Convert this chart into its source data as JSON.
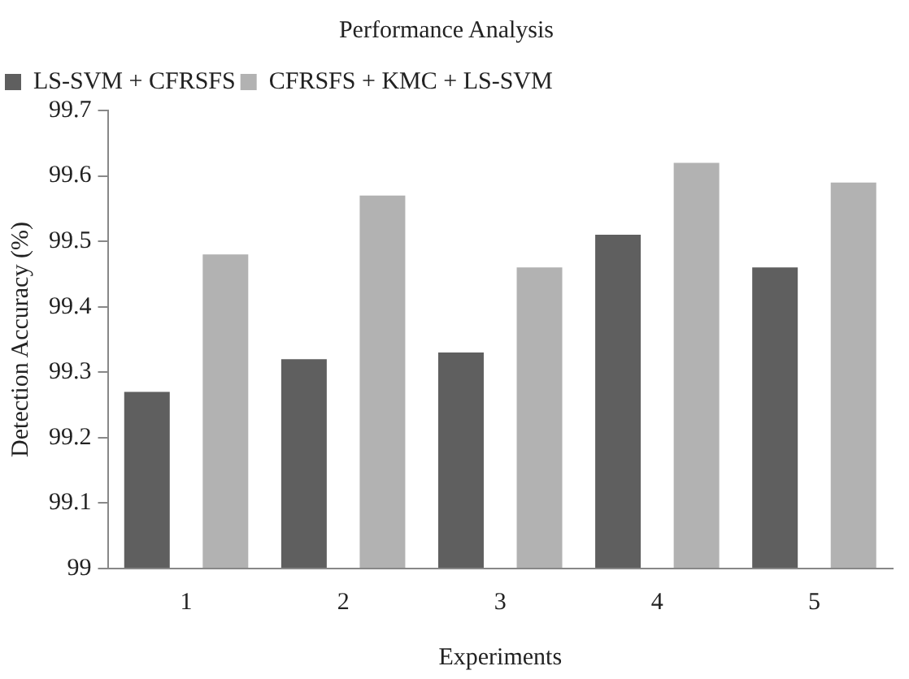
{
  "chart_data": {
    "type": "bar",
    "title": "Performance Analysis",
    "xlabel": "Experiments",
    "ylabel": "Detection Accuracy (%)",
    "categories": [
      "1",
      "2",
      "3",
      "4",
      "5"
    ],
    "series": [
      {
        "name": "LS-SVM + CFRSFS",
        "color": "#5f5f5f",
        "values": [
          99.27,
          99.32,
          99.33,
          99.51,
          99.46
        ]
      },
      {
        "name": "CFRSFS + KMC + LS-SVM",
        "color": "#b2b2b2",
        "values": [
          99.48,
          99.57,
          99.46,
          99.62,
          99.59
        ]
      }
    ],
    "ylim": [
      99,
      99.7
    ],
    "yticks": [
      99,
      99.1,
      99.2,
      99.3,
      99.4,
      99.5,
      99.6,
      99.7
    ],
    "grid": false,
    "legend": "top left"
  }
}
